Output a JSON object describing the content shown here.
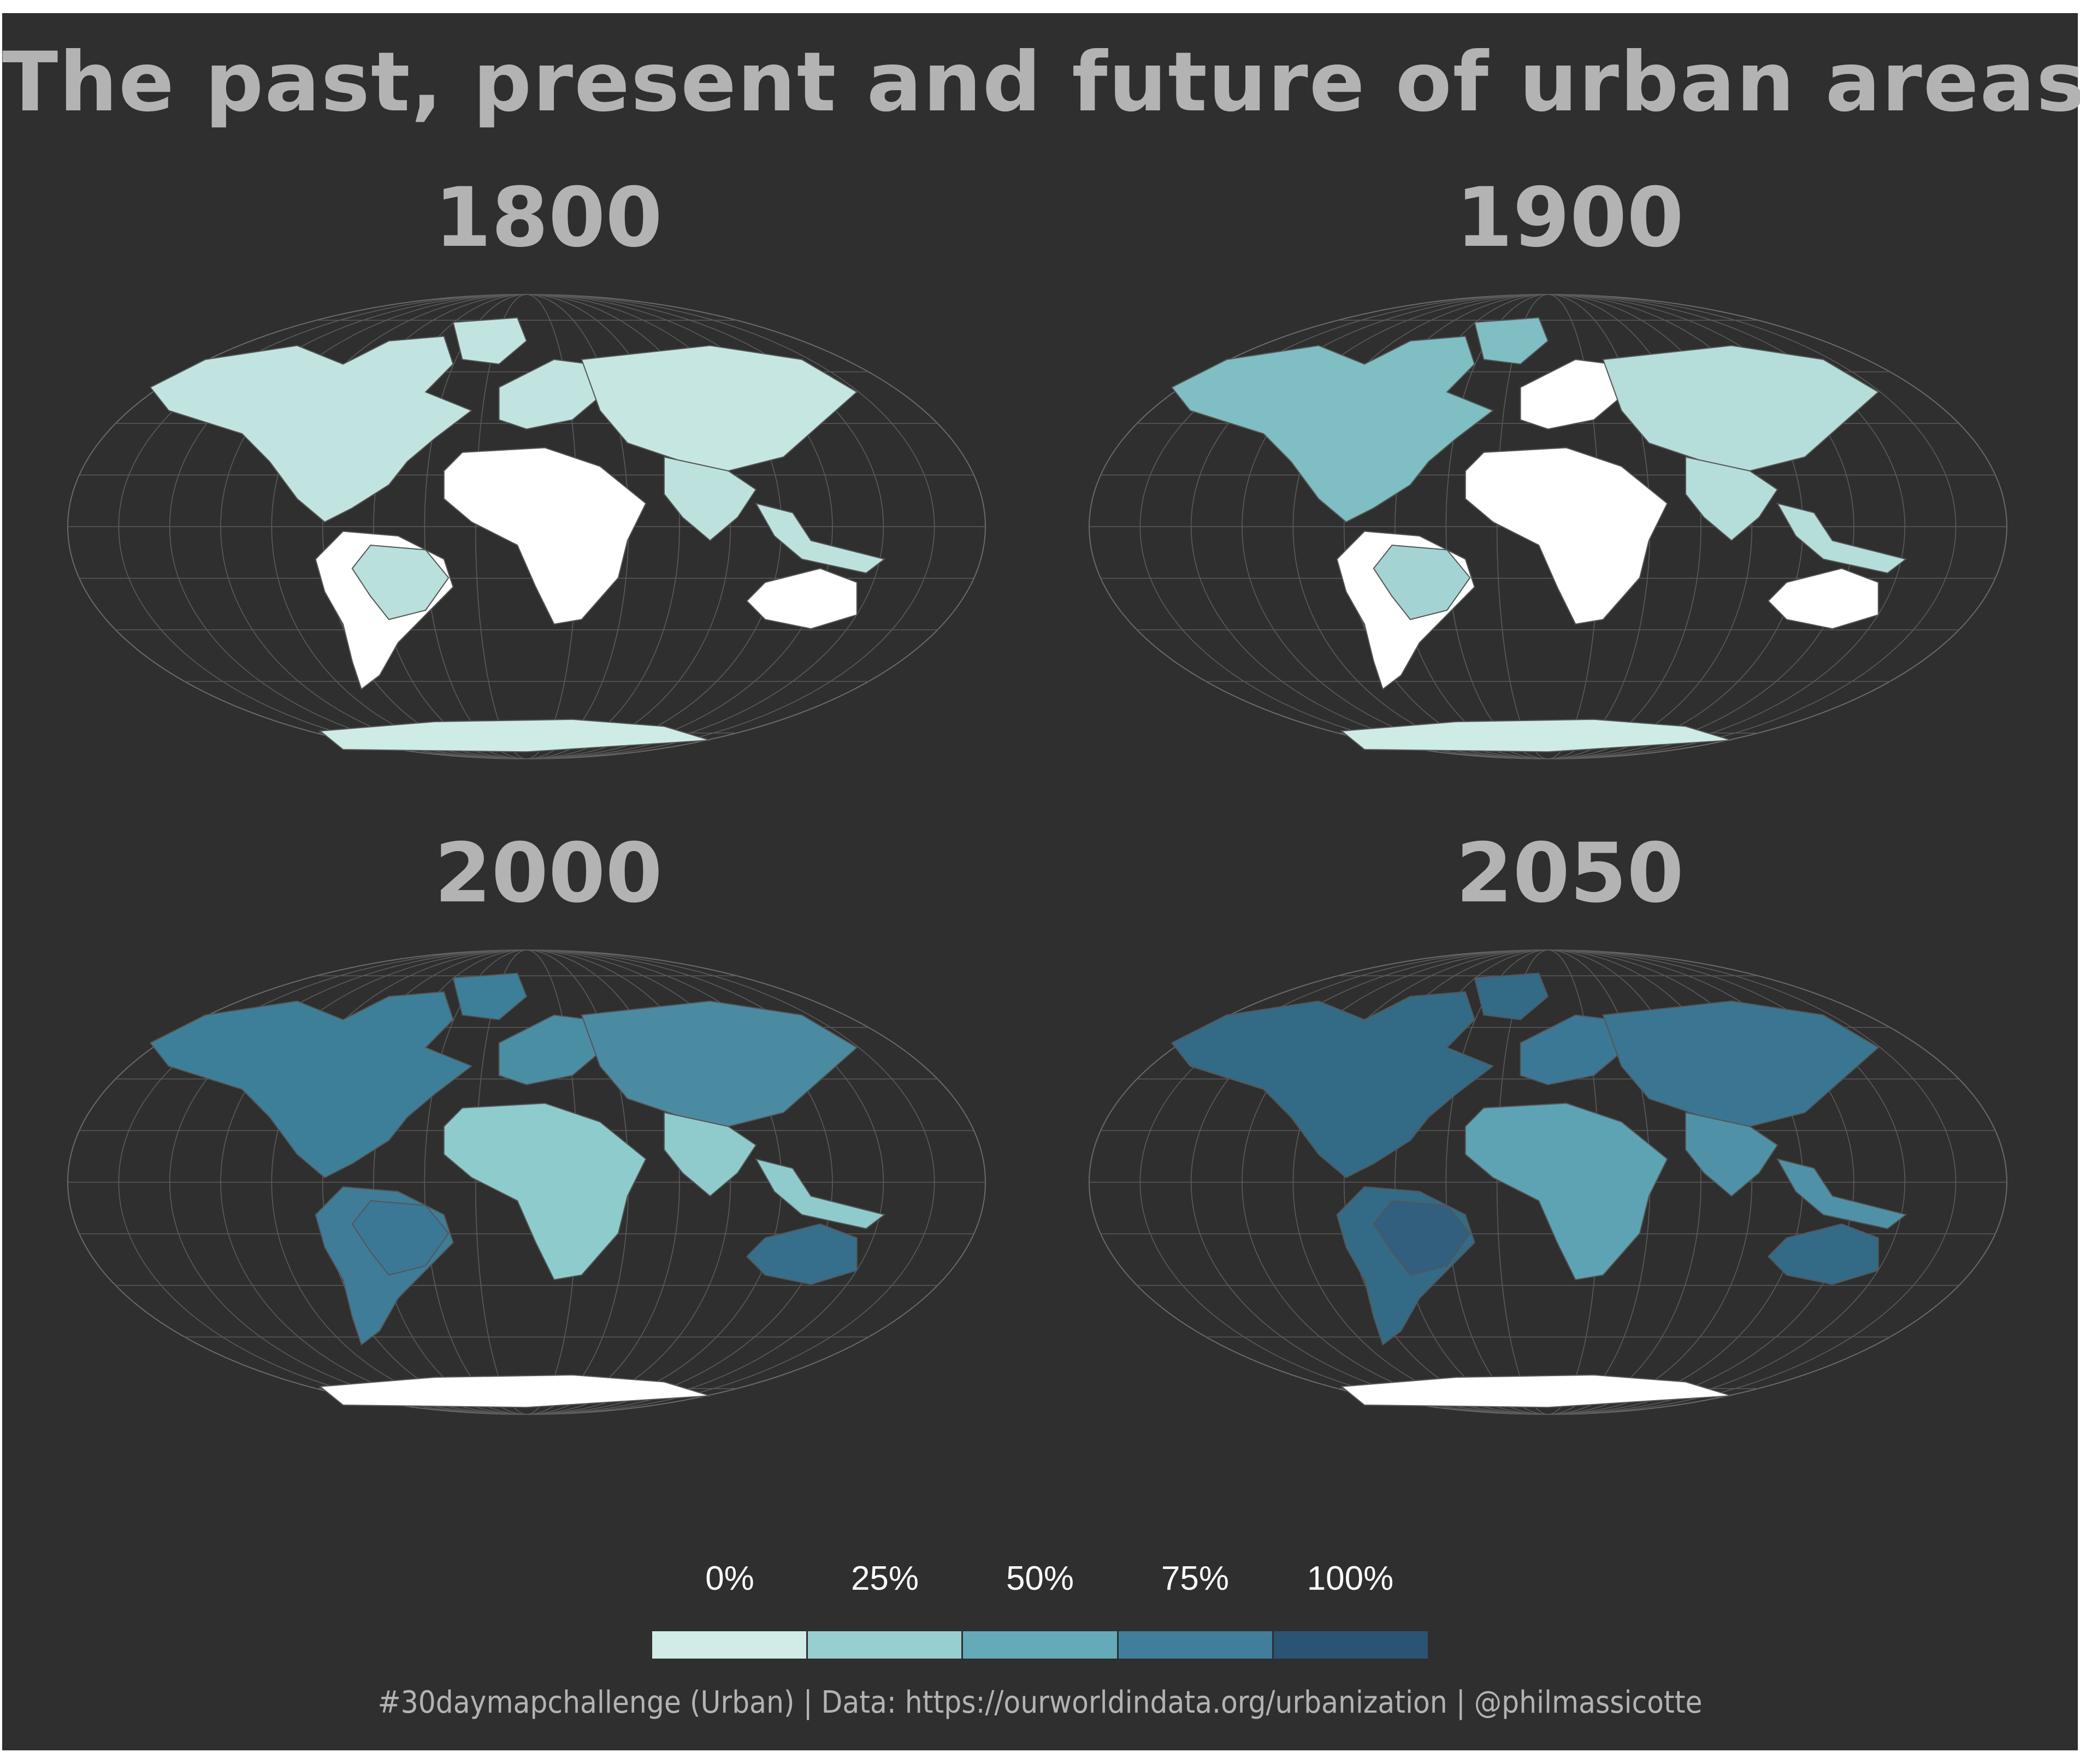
{
  "title": "The past, present and future of urban areas",
  "panels": [
    {
      "year": "1800",
      "land": "#cfebe6",
      "north_america": "#c2e4e0",
      "south_america": "#ffffff",
      "brazil": "#b9e0dc",
      "africa": "#ffffff",
      "europe": "#c2e4e0",
      "russia_asia": "#c6e6e2",
      "south_asia": "#bde2de",
      "australia": "#ffffff",
      "antarctica": "#cfebe6"
    },
    {
      "year": "1900",
      "land": "#cfebe6",
      "north_america": "#7fbec3",
      "south_america": "#ffffff",
      "brazil": "#a3d4d3",
      "africa": "#ffffff",
      "europe": "#ffffff",
      "russia_asia": "#b5ddd9",
      "south_asia": "#b5ddd9",
      "australia": "#ffffff",
      "antarctica": "#cfebe6"
    },
    {
      "year": "2000",
      "land": "#3d7f99",
      "north_america": "#3d7f99",
      "south_america": "#3f7c98",
      "brazil": "#3b7895",
      "africa": "#8ecbcc",
      "europe": "#4a8ea4",
      "russia_asia": "#4b8ba2",
      "south_asia": "#8fcbcc",
      "australia": "#356f8c",
      "antarctica": "#ffffff"
    },
    {
      "year": "2050",
      "land": "#336a86",
      "north_america": "#336a86",
      "south_america": "#336a86",
      "brazil": "#325f7d",
      "africa": "#5ea3b4",
      "europe": "#3b7895",
      "russia_asia": "#3a7692",
      "south_asia": "#4f92a8",
      "australia": "#336a86",
      "antarctica": "#ffffff"
    }
  ],
  "legend": {
    "labels": [
      "0%",
      "25%",
      "50%",
      "75%",
      "100%"
    ],
    "colors": [
      "#d1ece7",
      "#97cfd0",
      "#65aab9",
      "#407e9c",
      "#2a5572"
    ]
  },
  "caption": "#30daymapchallenge (Urban) | Data: https://ourworldindata.org/urbanization | @philmassicotte"
}
